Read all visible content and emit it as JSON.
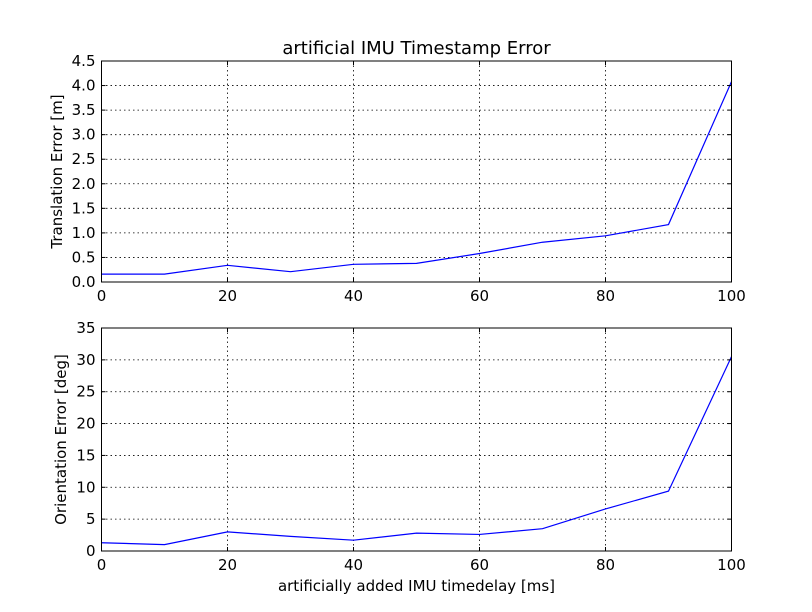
{
  "chart_data": [
    {
      "type": "line",
      "title": "artificial IMU Timestamp Error",
      "xlabel": "",
      "ylabel": "Translation Error [m]",
      "xlim": [
        0,
        100
      ],
      "ylim": [
        0,
        4.5
      ],
      "xticks": [
        "0",
        "20",
        "40",
        "60",
        "80",
        "100"
      ],
      "yticks": [
        "0.0",
        "0.5",
        "1.0",
        "1.5",
        "2.0",
        "2.5",
        "3.0",
        "3.5",
        "4.0",
        "4.5"
      ],
      "grid": true,
      "color": "#0000ff",
      "x": [
        0,
        10,
        20,
        30,
        40,
        50,
        60,
        70,
        80,
        90,
        100
      ],
      "y": [
        0.16,
        0.16,
        0.34,
        0.21,
        0.36,
        0.38,
        0.58,
        0.81,
        0.94,
        1.17,
        4.08
      ]
    },
    {
      "type": "line",
      "title": "",
      "xlabel": "artificially added IMU timedelay [ms]",
      "ylabel": "Orientation Error [deg]",
      "xlim": [
        0,
        100
      ],
      "ylim": [
        0,
        35
      ],
      "xticks": [
        "0",
        "20",
        "40",
        "60",
        "80",
        "100"
      ],
      "yticks": [
        "0",
        "5",
        "10",
        "15",
        "20",
        "25",
        "30",
        "35"
      ],
      "grid": true,
      "color": "#0000ff",
      "x": [
        0,
        10,
        20,
        30,
        40,
        50,
        60,
        70,
        80,
        90,
        100
      ],
      "y": [
        1.3,
        1.0,
        3.0,
        2.3,
        1.7,
        2.8,
        2.6,
        3.5,
        6.6,
        9.4,
        30.5
      ]
    }
  ]
}
